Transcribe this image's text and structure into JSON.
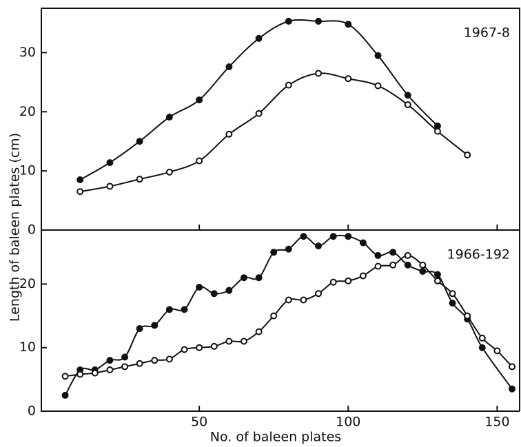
{
  "chart_data": [
    {
      "type": "scatter",
      "annotation": "1967-8",
      "ylabel": "Length of baleen plates (cm)",
      "xlim": [
        -3,
        158
      ],
      "ylim": [
        0,
        37.5
      ],
      "yticks": [
        0,
        10,
        20,
        30
      ],
      "xticks": [
        50,
        100,
        150
      ],
      "series": [
        {
          "color": "#111111",
          "marker": "filled",
          "x": [
            10,
            20,
            30,
            40,
            50,
            60,
            70,
            80,
            90,
            100,
            110,
            120,
            130
          ],
          "values": [
            8.5,
            11.4,
            15.0,
            19.1,
            22.0,
            27.6,
            32.4,
            35.3,
            35.3,
            34.8,
            29.5,
            22.8,
            17.6
          ]
        },
        {
          "color": "#111111",
          "marker": "open",
          "x": [
            10,
            20,
            30,
            40,
            50,
            60,
            70,
            80,
            90,
            100,
            110,
            120,
            130,
            140
          ],
          "values": [
            6.5,
            7.4,
            8.6,
            9.8,
            11.7,
            16.2,
            19.7,
            24.5,
            26.5,
            25.6,
            24.4,
            21.2,
            16.7,
            12.7
          ]
        }
      ]
    },
    {
      "type": "scatter",
      "annotation": "1966-192",
      "xlabel": "No. of baleen plates",
      "xlim": [
        -3,
        158
      ],
      "ylim": [
        0,
        28.5
      ],
      "yticks": [
        0,
        10,
        20
      ],
      "xticks": [
        50,
        100,
        150
      ],
      "series": [
        {
          "color": "#111111",
          "marker": "filled",
          "x": [
            5,
            10,
            15,
            20,
            25,
            30,
            35,
            40,
            45,
            50,
            55,
            60,
            65,
            70,
            75,
            80,
            85,
            90,
            95,
            100,
            105,
            110,
            115,
            120,
            125,
            130,
            135,
            140,
            145,
            155
          ],
          "values": [
            2.5,
            6.5,
            6.5,
            8,
            8.5,
            13,
            13.5,
            16,
            16,
            19.5,
            18.5,
            19,
            21,
            21,
            25,
            25.5,
            27.5,
            26,
            27.5,
            27.5,
            26.5,
            24.5,
            25,
            23,
            22,
            21.5,
            17,
            14.5,
            10,
            3.5
          ]
        },
        {
          "color": "#111111",
          "marker": "open",
          "x": [
            5,
            10,
            15,
            20,
            25,
            30,
            35,
            40,
            45,
            50,
            55,
            60,
            65,
            70,
            75,
            80,
            85,
            90,
            95,
            100,
            105,
            110,
            115,
            120,
            125,
            130,
            135,
            140,
            145,
            150,
            155
          ],
          "values": [
            5.5,
            5.8,
            6,
            6.5,
            7,
            7.5,
            8,
            8.2,
            9.7,
            10,
            10.2,
            11,
            11,
            12.5,
            15,
            17.5,
            17.5,
            18.5,
            20.3,
            20.5,
            21.3,
            22.8,
            23,
            24.5,
            23,
            20.5,
            18.5,
            15,
            11.5,
            9.5,
            7
          ]
        }
      ]
    }
  ]
}
